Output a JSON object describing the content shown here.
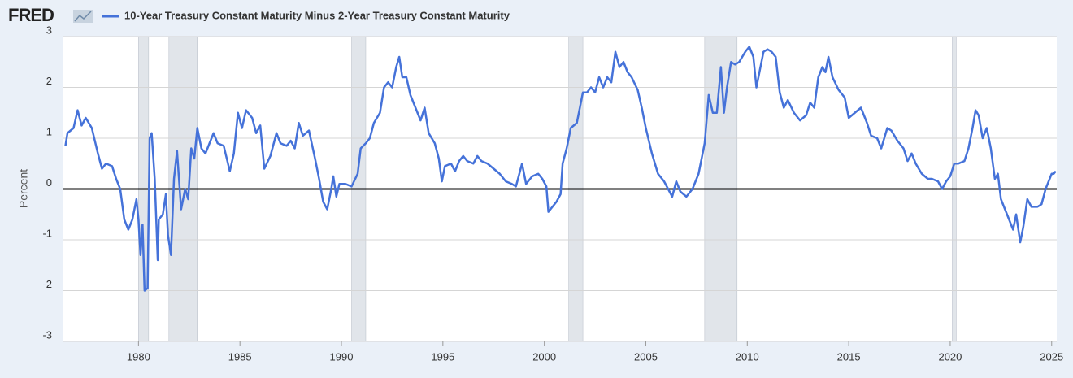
{
  "logo": "FRED",
  "chart_data": {
    "type": "line",
    "y_label": "Percent",
    "grid": true,
    "xlim": [
      1976.3,
      2025.25
    ],
    "xticks": [
      1980,
      1985,
      1990,
      1995,
      2000,
      2005,
      2010,
      2015,
      2020,
      2025
    ],
    "ylim": [
      -3,
      3
    ],
    "yticks": [
      -3,
      -2,
      -1,
      0,
      1,
      2,
      3
    ],
    "recessions": [
      [
        1980.0,
        1980.5
      ],
      [
        1981.5,
        1982.9
      ],
      [
        1990.5,
        1991.2
      ],
      [
        2001.2,
        2001.9
      ],
      [
        2007.9,
        2009.5
      ],
      [
        2020.1,
        2020.3
      ]
    ],
    "x": [
      1976.4,
      1976.5,
      1976.8,
      1977.0,
      1977.2,
      1977.4,
      1977.7,
      1978.0,
      1978.2,
      1978.4,
      1978.7,
      1978.9,
      1979.1,
      1979.3,
      1979.5,
      1979.7,
      1979.9,
      1980.0,
      1980.1,
      1980.2,
      1980.3,
      1980.45,
      1980.55,
      1980.65,
      1980.8,
      1980.95,
      1981.0,
      1981.2,
      1981.35,
      1981.45,
      1981.6,
      1981.75,
      1981.9,
      1982.1,
      1982.3,
      1982.45,
      1982.6,
      1982.75,
      1982.9,
      1983.1,
      1983.3,
      1983.5,
      1983.7,
      1983.9,
      1984.2,
      1984.5,
      1984.7,
      1984.9,
      1985.1,
      1985.3,
      1985.6,
      1985.8,
      1986.0,
      1986.2,
      1986.5,
      1986.8,
      1987.0,
      1987.3,
      1987.5,
      1987.7,
      1987.9,
      1988.1,
      1988.4,
      1988.7,
      1988.9,
      1989.1,
      1989.3,
      1989.5,
      1989.6,
      1989.75,
      1989.9,
      1990.2,
      1990.5,
      1990.8,
      1990.95,
      1991.2,
      1991.4,
      1991.6,
      1991.9,
      1992.1,
      1992.3,
      1992.5,
      1992.7,
      1992.85,
      1993.0,
      1993.2,
      1993.4,
      1993.7,
      1993.9,
      1994.1,
      1994.3,
      1994.6,
      1994.8,
      1994.95,
      1995.1,
      1995.4,
      1995.6,
      1995.8,
      1996.0,
      1996.2,
      1996.5,
      1996.7,
      1996.9,
      1997.2,
      1997.5,
      1997.8,
      1998.1,
      1998.4,
      1998.6,
      1998.9,
      1999.1,
      1999.4,
      1999.7,
      1999.9,
      2000.1,
      2000.2,
      2000.4,
      2000.6,
      2000.8,
      2000.9,
      2001.1,
      2001.3,
      2001.6,
      2001.8,
      2001.9,
      2002.1,
      2002.3,
      2002.5,
      2002.7,
      2002.9,
      2003.1,
      2003.3,
      2003.5,
      2003.7,
      2003.9,
      2004.1,
      2004.3,
      2004.6,
      2004.8,
      2005.0,
      2005.3,
      2005.6,
      2005.9,
      2006.1,
      2006.3,
      2006.5,
      2006.7,
      2007.0,
      2007.3,
      2007.6,
      2007.9,
      2008.1,
      2008.3,
      2008.5,
      2008.7,
      2008.85,
      2009.0,
      2009.2,
      2009.4,
      2009.6,
      2009.9,
      2010.1,
      2010.3,
      2010.45,
      2010.6,
      2010.8,
      2011.0,
      2011.2,
      2011.4,
      2011.6,
      2011.8,
      2012.0,
      2012.3,
      2012.6,
      2012.9,
      2013.1,
      2013.3,
      2013.5,
      2013.7,
      2013.85,
      2014.0,
      2014.2,
      2014.5,
      2014.8,
      2015.0,
      2015.3,
      2015.6,
      2015.9,
      2016.1,
      2016.4,
      2016.6,
      2016.9,
      2017.1,
      2017.4,
      2017.7,
      2017.9,
      2018.1,
      2018.3,
      2018.6,
      2018.9,
      2019.1,
      2019.4,
      2019.6,
      2019.8,
      2020.0,
      2020.2,
      2020.4,
      2020.7,
      2020.9,
      2021.1,
      2021.25,
      2021.4,
      2021.6,
      2021.8,
      2022.0,
      2022.2,
      2022.35,
      2022.5,
      2022.7,
      2022.9,
      2023.1,
      2023.25,
      2023.45,
      2023.6,
      2023.8,
      2024.0,
      2024.3,
      2024.5,
      2024.7,
      2024.85,
      2025.0,
      2025.1,
      2025.2
    ],
    "series": [
      {
        "name": "10-Year Treasury Constant Maturity Minus 2-Year Treasury Constant Maturity",
        "color": "#4572d9",
        "values": [
          0.85,
          1.1,
          1.2,
          1.55,
          1.25,
          1.4,
          1.2,
          0.7,
          0.4,
          0.5,
          0.45,
          0.2,
          0.0,
          -0.6,
          -0.8,
          -0.6,
          -0.2,
          -0.6,
          -1.3,
          -0.7,
          -2.0,
          -1.95,
          1.0,
          1.1,
          0.2,
          -1.4,
          -0.6,
          -0.5,
          -0.1,
          -0.9,
          -1.3,
          0.2,
          0.75,
          -0.4,
          0.0,
          -0.2,
          0.8,
          0.6,
          1.2,
          0.8,
          0.7,
          0.9,
          1.1,
          0.9,
          0.85,
          0.35,
          0.7,
          1.5,
          1.2,
          1.55,
          1.4,
          1.1,
          1.25,
          0.4,
          0.65,
          1.1,
          0.9,
          0.85,
          0.95,
          0.8,
          1.3,
          1.05,
          1.15,
          0.6,
          0.2,
          -0.25,
          -0.4,
          0.0,
          0.25,
          -0.15,
          0.1,
          0.1,
          0.05,
          0.3,
          0.8,
          0.9,
          1.0,
          1.3,
          1.5,
          2.0,
          2.1,
          2.0,
          2.4,
          2.6,
          2.2,
          2.2,
          1.85,
          1.55,
          1.35,
          1.6,
          1.1,
          0.9,
          0.6,
          0.15,
          0.45,
          0.5,
          0.35,
          0.55,
          0.65,
          0.55,
          0.5,
          0.65,
          0.55,
          0.5,
          0.4,
          0.3,
          0.15,
          0.1,
          0.05,
          0.5,
          0.1,
          0.25,
          0.3,
          0.2,
          0.05,
          -0.45,
          -0.35,
          -0.25,
          -0.1,
          0.5,
          0.8,
          1.2,
          1.3,
          1.7,
          1.9,
          1.9,
          2.0,
          1.9,
          2.2,
          2.0,
          2.2,
          2.1,
          2.7,
          2.4,
          2.5,
          2.3,
          2.2,
          1.95,
          1.6,
          1.2,
          0.7,
          0.3,
          0.15,
          0.0,
          -0.15,
          0.15,
          -0.05,
          -0.15,
          0.0,
          0.3,
          0.9,
          1.85,
          1.5,
          1.5,
          2.4,
          1.5,
          2.0,
          2.5,
          2.45,
          2.5,
          2.7,
          2.8,
          2.6,
          2.0,
          2.3,
          2.7,
          2.75,
          2.7,
          2.6,
          1.9,
          1.6,
          1.75,
          1.5,
          1.35,
          1.45,
          1.7,
          1.6,
          2.2,
          2.4,
          2.3,
          2.6,
          2.2,
          1.95,
          1.8,
          1.4,
          1.5,
          1.6,
          1.3,
          1.05,
          1.0,
          0.8,
          1.2,
          1.15,
          0.95,
          0.8,
          0.55,
          0.7,
          0.5,
          0.3,
          0.2,
          0.2,
          0.15,
          0.0,
          0.15,
          0.25,
          0.5,
          0.5,
          0.55,
          0.8,
          1.2,
          1.55,
          1.45,
          1.0,
          1.2,
          0.8,
          0.2,
          0.3,
          -0.2,
          -0.4,
          -0.6,
          -0.8,
          -0.5,
          -1.05,
          -0.75,
          -0.2,
          -0.35,
          -0.35,
          -0.3,
          0.0,
          0.15,
          0.3,
          0.3,
          0.35
        ]
      }
    ]
  }
}
